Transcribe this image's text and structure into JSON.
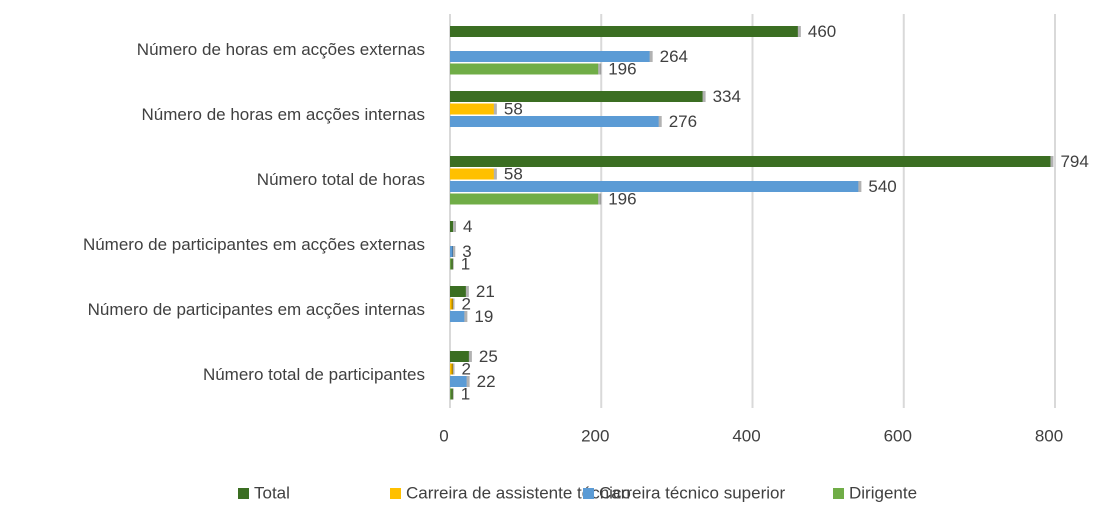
{
  "chart_data": {
    "type": "bar",
    "orientation": "horizontal",
    "categories": [
      "Número de horas em acções externas",
      "Número de horas em acções internas",
      "Número total de horas",
      "Número de participantes em acções externas",
      "Número de participantes em acções internas",
      "Número total de participantes"
    ],
    "series": [
      {
        "name": "Total",
        "color": "#3b6e22",
        "values": [
          460,
          334,
          794,
          4,
          21,
          25
        ]
      },
      {
        "name": "Carreira de assistente técnico",
        "color": "#ffc000",
        "values": [
          null,
          58,
          58,
          null,
          2,
          2
        ]
      },
      {
        "name": "Carreira técnico superior",
        "color": "#5b9bd5",
        "values": [
          264,
          276,
          540,
          3,
          19,
          22
        ]
      },
      {
        "name": "Dirigente",
        "color": "#70ad47",
        "values": [
          196,
          null,
          196,
          1,
          null,
          1
        ]
      }
    ],
    "xlim": [
      0,
      800
    ],
    "xticks": [
      0,
      200,
      400,
      600,
      800
    ],
    "grid": true,
    "legend": "bottom"
  }
}
